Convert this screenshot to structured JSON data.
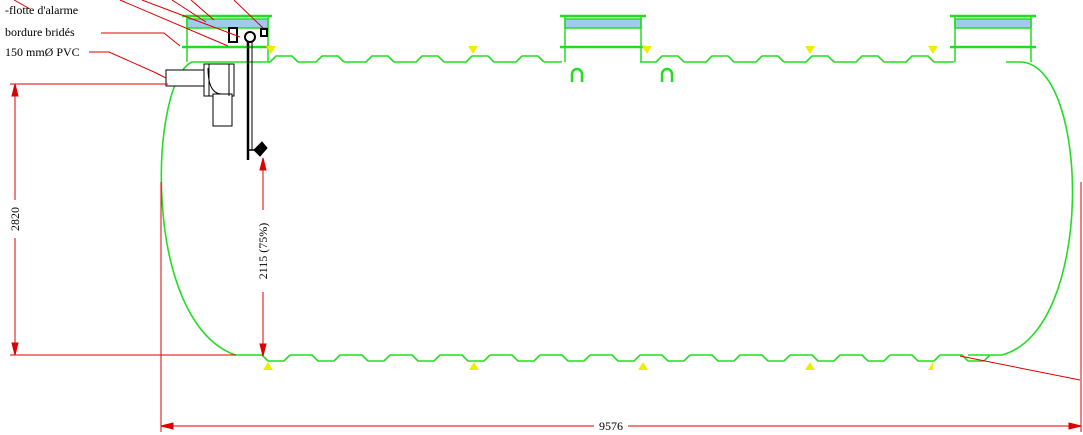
{
  "callouts": {
    "alarm_float": "-flotte d'alarme",
    "flanged_border": "bordure bridés",
    "pvc_pipe": "150 mmØ PVC"
  },
  "dimensions": {
    "tank_length": "9576",
    "tank_diameter": "2820",
    "liquid_level": "2115 (75%)"
  },
  "colors": {
    "tank_outline": "#22dd22",
    "dimension_line": "#dd0000",
    "support_marker": "#eeee00",
    "water_fill": "#9ecbef",
    "fittings": "#000000"
  }
}
